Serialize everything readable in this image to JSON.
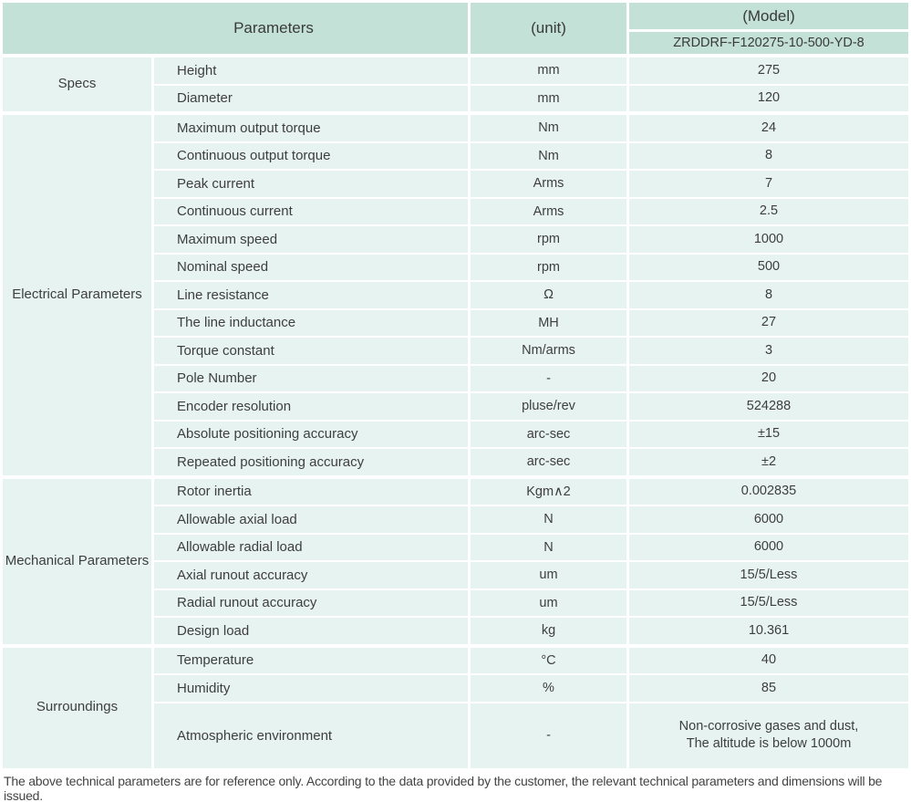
{
  "colors": {
    "header_bg": "#c3e1d7",
    "row_bg": "#e7f3f0",
    "text": "#3e3e3e"
  },
  "header": {
    "parameters_label": "Parameters",
    "unit_label": "(unit)",
    "model_label": "(Model)",
    "model_value": "ZRDDRF-F120275-10-500-YD-8"
  },
  "sections": [
    {
      "group": "Specs",
      "rows": [
        {
          "name": "Height",
          "unit": "mm",
          "value": "275"
        },
        {
          "name": "Diameter",
          "unit": "mm",
          "value": "120"
        }
      ]
    },
    {
      "group": "Electrical Parameters",
      "rows": [
        {
          "name": "Maximum output torque",
          "unit": "Nm",
          "value": "24"
        },
        {
          "name": "Continuous output torque",
          "unit": "Nm",
          "value": "8"
        },
        {
          "name": "Peak current",
          "unit": "Arms",
          "value": "7"
        },
        {
          "name": "Continuous current",
          "unit": "Arms",
          "value": "2.5"
        },
        {
          "name": "Maximum speed",
          "unit": "rpm",
          "value": "1000"
        },
        {
          "name": "Nominal speed",
          "unit": "rpm",
          "value": "500"
        },
        {
          "name": "Line resistance",
          "unit": "Ω",
          "value": "8"
        },
        {
          "name": "The line inductance",
          "unit": "MH",
          "value": "27"
        },
        {
          "name": "Torque constant",
          "unit": "Nm/arms",
          "value": "3"
        },
        {
          "name": "Pole Number",
          "unit": "-",
          "value": "20"
        },
        {
          "name": "Encoder resolution",
          "unit": "pluse/rev",
          "value": "524288"
        },
        {
          "name": "Absolute positioning accuracy",
          "unit": "arc-sec",
          "value": "±15"
        },
        {
          "name": "Repeated positioning accuracy",
          "unit": "arc-sec",
          "value": "±2"
        }
      ]
    },
    {
      "group": "Mechanical Parameters",
      "rows": [
        {
          "name": "Rotor inertia",
          "unit": "Kgm∧2",
          "value": "0.002835"
        },
        {
          "name": "Allowable axial load",
          "unit": "N",
          "value": "6000"
        },
        {
          "name": "Allowable radial load",
          "unit": "N",
          "value": "6000"
        },
        {
          "name": "Axial runout accuracy",
          "unit": "um",
          "value": "15/5/Less"
        },
        {
          "name": "Radial runout accuracy",
          "unit": "um",
          "value": "15/5/Less"
        },
        {
          "name": "Design load",
          "unit": "kg",
          "value": "10.361"
        }
      ]
    },
    {
      "group": "Surroundings",
      "rows": [
        {
          "name": "Temperature",
          "unit": "°C",
          "value": "40"
        },
        {
          "name": "Humidity",
          "unit": "%",
          "value": "85"
        },
        {
          "name": "Atmospheric environment",
          "unit": "-",
          "value_lines": [
            "Non-corrosive gases and dust,",
            "The altitude is below 1000m"
          ]
        }
      ]
    }
  ],
  "footer": {
    "note": "The above technical parameters are for reference only. According to the data provided by the customer, the relevant technical parameters and dimensions will be issued."
  }
}
